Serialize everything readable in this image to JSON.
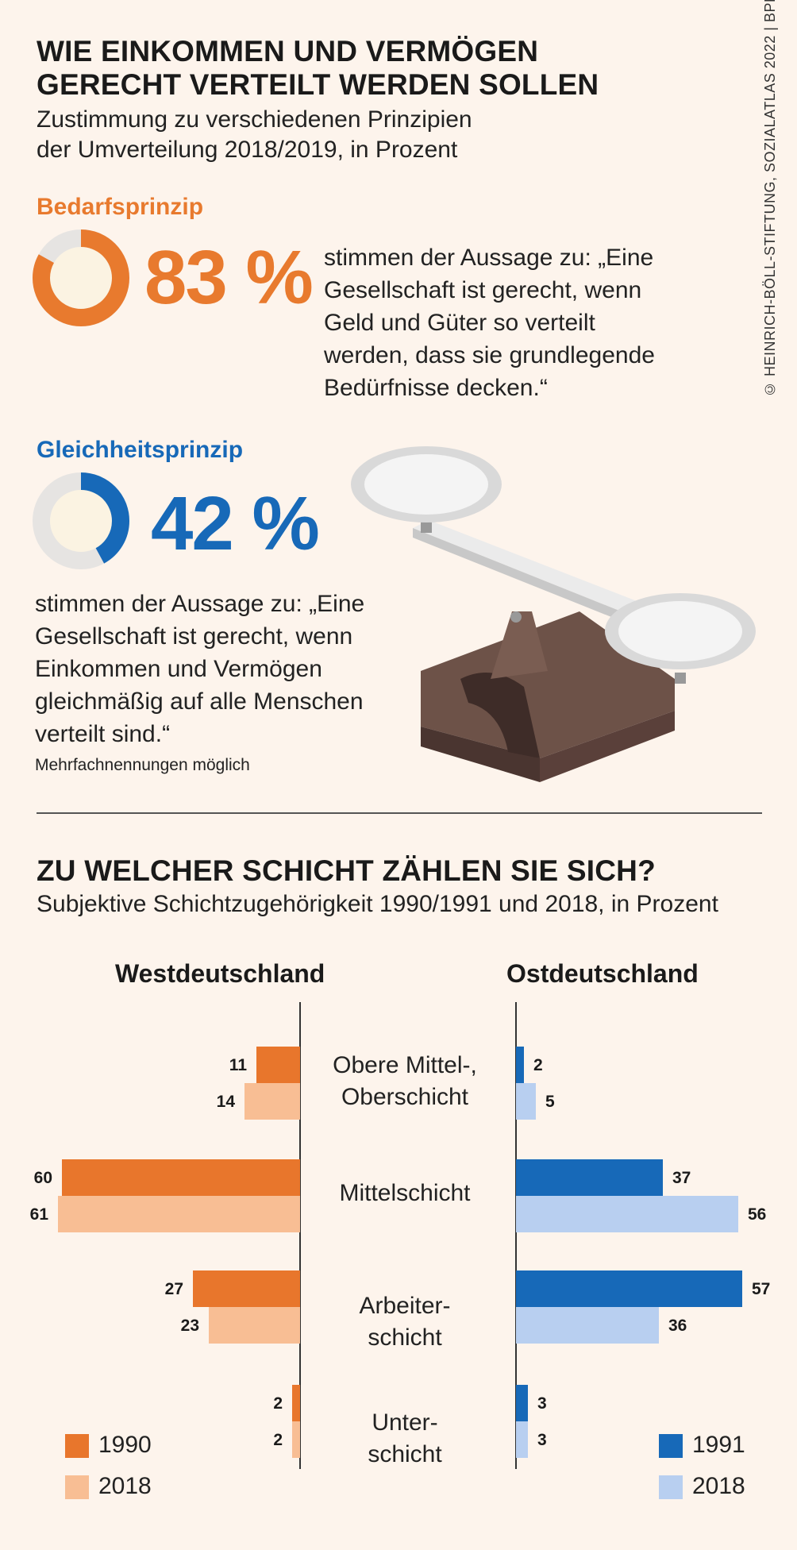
{
  "credit": "© HEINRICH-BÖLL-STIFTUNG, SOZIALATLAS 2022 | BPB",
  "section1": {
    "title_line1": "WIE EINKOMMEN UND VERMÖGEN",
    "title_line2": "GERECHT VERTEILT WERDEN SOLLEN",
    "subtitle_line1": "Zustimmung zu verschiedenen Prinzipien",
    "subtitle_line2": "der Umverteilung 2018/2019, in Prozent",
    "bedarf": {
      "label": "Bedarfsprinzip",
      "value": 83,
      "display": "83 %",
      "color": "#e87a2e",
      "statement": [
        "stimmen der Aussage zu: „Eine",
        "Gesellschaft ist gerecht, wenn",
        "Geld und Güter so verteilt",
        "werden, dass sie grundlegende",
        "Bedürfnisse decken.“"
      ]
    },
    "gleichheit": {
      "label": "Gleichheitsprinzip",
      "value": 42,
      "display": "42 %",
      "color": "#1769b8",
      "statement": [
        "stimmen der Aussage zu: „Eine",
        "Gesellschaft ist gerecht, wenn",
        "Einkommen und Vermögen",
        "gleichmäßig auf alle Menschen",
        "verteilt sind.“"
      ]
    },
    "note": "Mehrfachnennungen möglich"
  },
  "section2": {
    "title": "ZU WELCHER SCHICHT ZÄHLEN SIE SICH?",
    "subtitle": "Subjektive Schichtzugehörigkeit 1990/1991 und 2018, in Prozent"
  },
  "chart_data": {
    "type": "bar",
    "orientation": "horizontal-butterfly",
    "categories": [
      [
        "Obere Mittel-,",
        "Oberschicht"
      ],
      [
        "Mittelschicht"
      ],
      [
        "Arbeiter-",
        "schicht"
      ],
      [
        "Unter-",
        "schicht"
      ]
    ],
    "west": {
      "title": "Westdeutschland",
      "series": [
        {
          "name": "1990",
          "color": "#e8762c",
          "values": [
            11,
            60,
            27,
            2
          ]
        },
        {
          "name": "2018",
          "color": "#f8be94",
          "values": [
            14,
            61,
            23,
            2
          ]
        }
      ]
    },
    "east": {
      "title": "Ostdeutschland",
      "series": [
        {
          "name": "1991",
          "color": "#1769b8",
          "values": [
            2,
            37,
            57,
            3
          ]
        },
        {
          "name": "2018",
          "color": "#b8cff0",
          "values": [
            5,
            56,
            36,
            3
          ]
        }
      ]
    }
  }
}
